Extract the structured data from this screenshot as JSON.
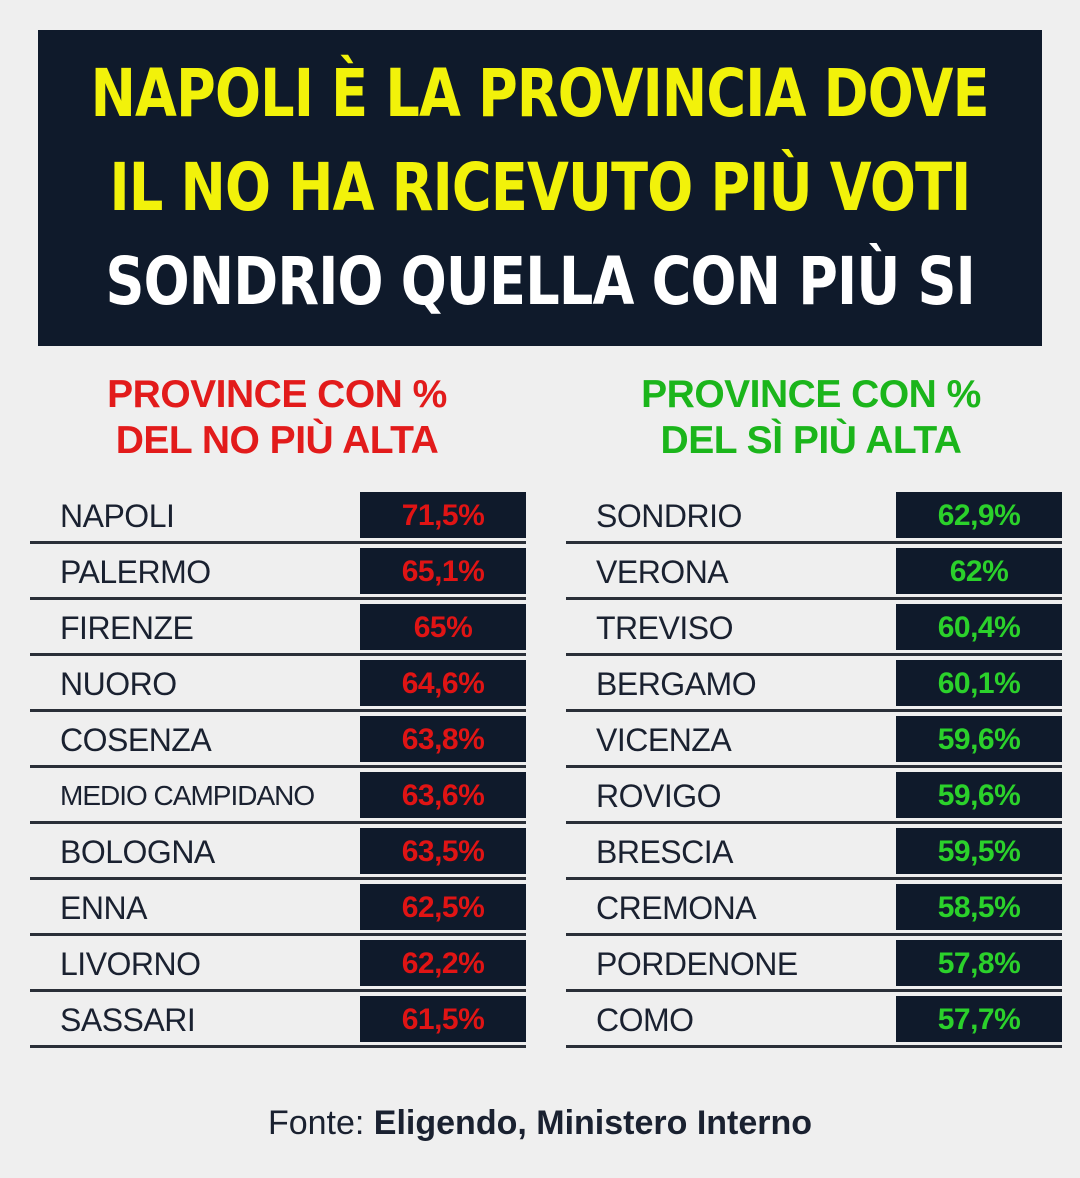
{
  "banner": {
    "line1": "NAPOLI È LA PROVINCIA DOVE",
    "line2": "IL NO HA RICEVUTO PIÙ VOTI",
    "line3": "SONDRIO QUELLA CON PIÙ SI"
  },
  "no_column": {
    "heading_line1": "PROVINCE CON %",
    "heading_line2": "DEL NO PIÙ ALTA",
    "rows": [
      {
        "name": "NAPOLI",
        "value": "71,5%"
      },
      {
        "name": "PALERMO",
        "value": "65,1%"
      },
      {
        "name": "FIRENZE",
        "value": "65%"
      },
      {
        "name": "NUORO",
        "value": "64,6%"
      },
      {
        "name": "COSENZA",
        "value": "63,8%"
      },
      {
        "name": "MEDIO CAMPIDANO",
        "value": "63,6%"
      },
      {
        "name": "BOLOGNA",
        "value": "63,5%"
      },
      {
        "name": "ENNA",
        "value": "62,5%"
      },
      {
        "name": "LIVORNO",
        "value": "62,2%"
      },
      {
        "name": "SASSARI",
        "value": "61,5%"
      }
    ]
  },
  "si_column": {
    "heading_line1": "PROVINCE CON %",
    "heading_line2": "DEL SÌ PIÙ ALTA",
    "rows": [
      {
        "name": "SONDRIO",
        "value": "62,9%"
      },
      {
        "name": "VERONA",
        "value": "62%"
      },
      {
        "name": "TREVISO",
        "value": "60,4%"
      },
      {
        "name": "BERGAMO",
        "value": "60,1%"
      },
      {
        "name": "VICENZA",
        "value": "59,6%"
      },
      {
        "name": "ROVIGO",
        "value": "59,6%"
      },
      {
        "name": "BRESCIA",
        "value": "59,5%"
      },
      {
        "name": "CREMONA",
        "value": "58,5%"
      },
      {
        "name": "PORDENONE",
        "value": "57,8%"
      },
      {
        "name": "COMO",
        "value": "57,7%"
      }
    ]
  },
  "source": {
    "label": "Fonte: ",
    "text": "Eligendo, Ministero Interno"
  },
  "colors": {
    "navy": "#0f1a2b",
    "yellow": "#f2f20a",
    "no_red": "#e01414",
    "si_green": "#2bd12b"
  }
}
